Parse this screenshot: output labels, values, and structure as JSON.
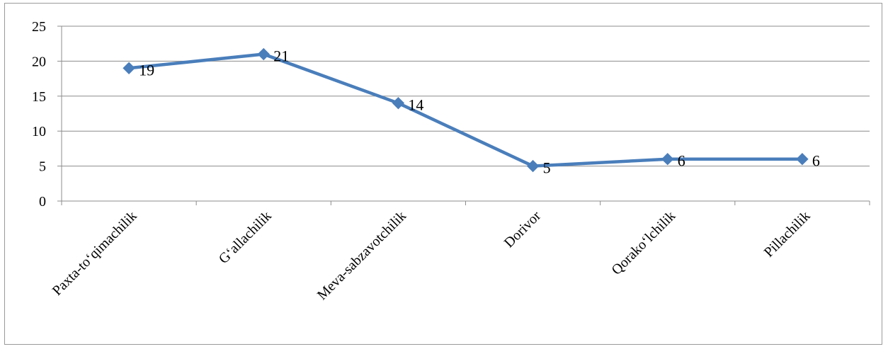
{
  "chart_data": {
    "type": "line",
    "categories": [
      "Paxta-to‘qimachilik",
      "G‘allachilik",
      "Meva-sabzavotchilik",
      "Dorivor",
      "Qorako‘lchilik",
      "Pillachilik"
    ],
    "series": [
      {
        "values": [
          19,
          21,
          14,
          5,
          6,
          6
        ],
        "color": "#4a7ebb"
      }
    ],
    "y_ticks": [
      "0",
      "5",
      "10",
      "15",
      "20",
      "25"
    ],
    "data_labels": [
      "19",
      "21",
      "14",
      "5",
      "6",
      "6"
    ],
    "ylim": [
      0,
      25
    ],
    "grid": true,
    "legend": "none",
    "marker": "diamond"
  }
}
